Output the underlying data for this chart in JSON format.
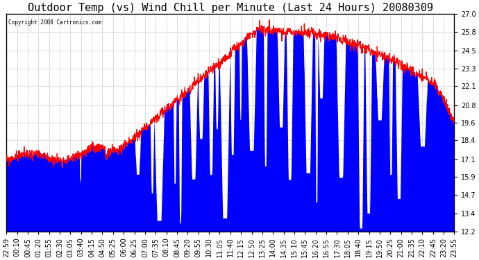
{
  "title": "Outdoor Temp (vs) Wind Chill per Minute (Last 24 Hours) 20080309",
  "copyright": "Copyright 2008 Cartronics.com",
  "yticks": [
    12.2,
    13.4,
    14.7,
    15.9,
    17.1,
    18.4,
    19.6,
    20.8,
    22.1,
    23.3,
    24.5,
    25.8,
    27.0
  ],
  "ymin": 12.2,
  "ymax": 27.0,
  "xtick_labels": [
    "22:59",
    "00:10",
    "00:45",
    "01:20",
    "01:55",
    "02:30",
    "03:05",
    "03:40",
    "04:15",
    "04:50",
    "05:25",
    "06:00",
    "06:25",
    "07:00",
    "07:35",
    "08:10",
    "08:45",
    "09:20",
    "09:55",
    "10:30",
    "11:05",
    "11:40",
    "12:15",
    "12:50",
    "13:25",
    "14:00",
    "14:35",
    "15:10",
    "15:45",
    "16:20",
    "16:55",
    "17:30",
    "18:05",
    "18:40",
    "19:15",
    "19:50",
    "20:25",
    "21:00",
    "21:35",
    "22:10",
    "22:45",
    "23:20",
    "23:55"
  ],
  "bg_color": "#ffffff",
  "grid_color": "#bbbbbb",
  "line_color_temp": "#ff0000",
  "bar_color_wind": "#0000ff",
  "title_fontsize": 11,
  "tick_fontsize": 7
}
